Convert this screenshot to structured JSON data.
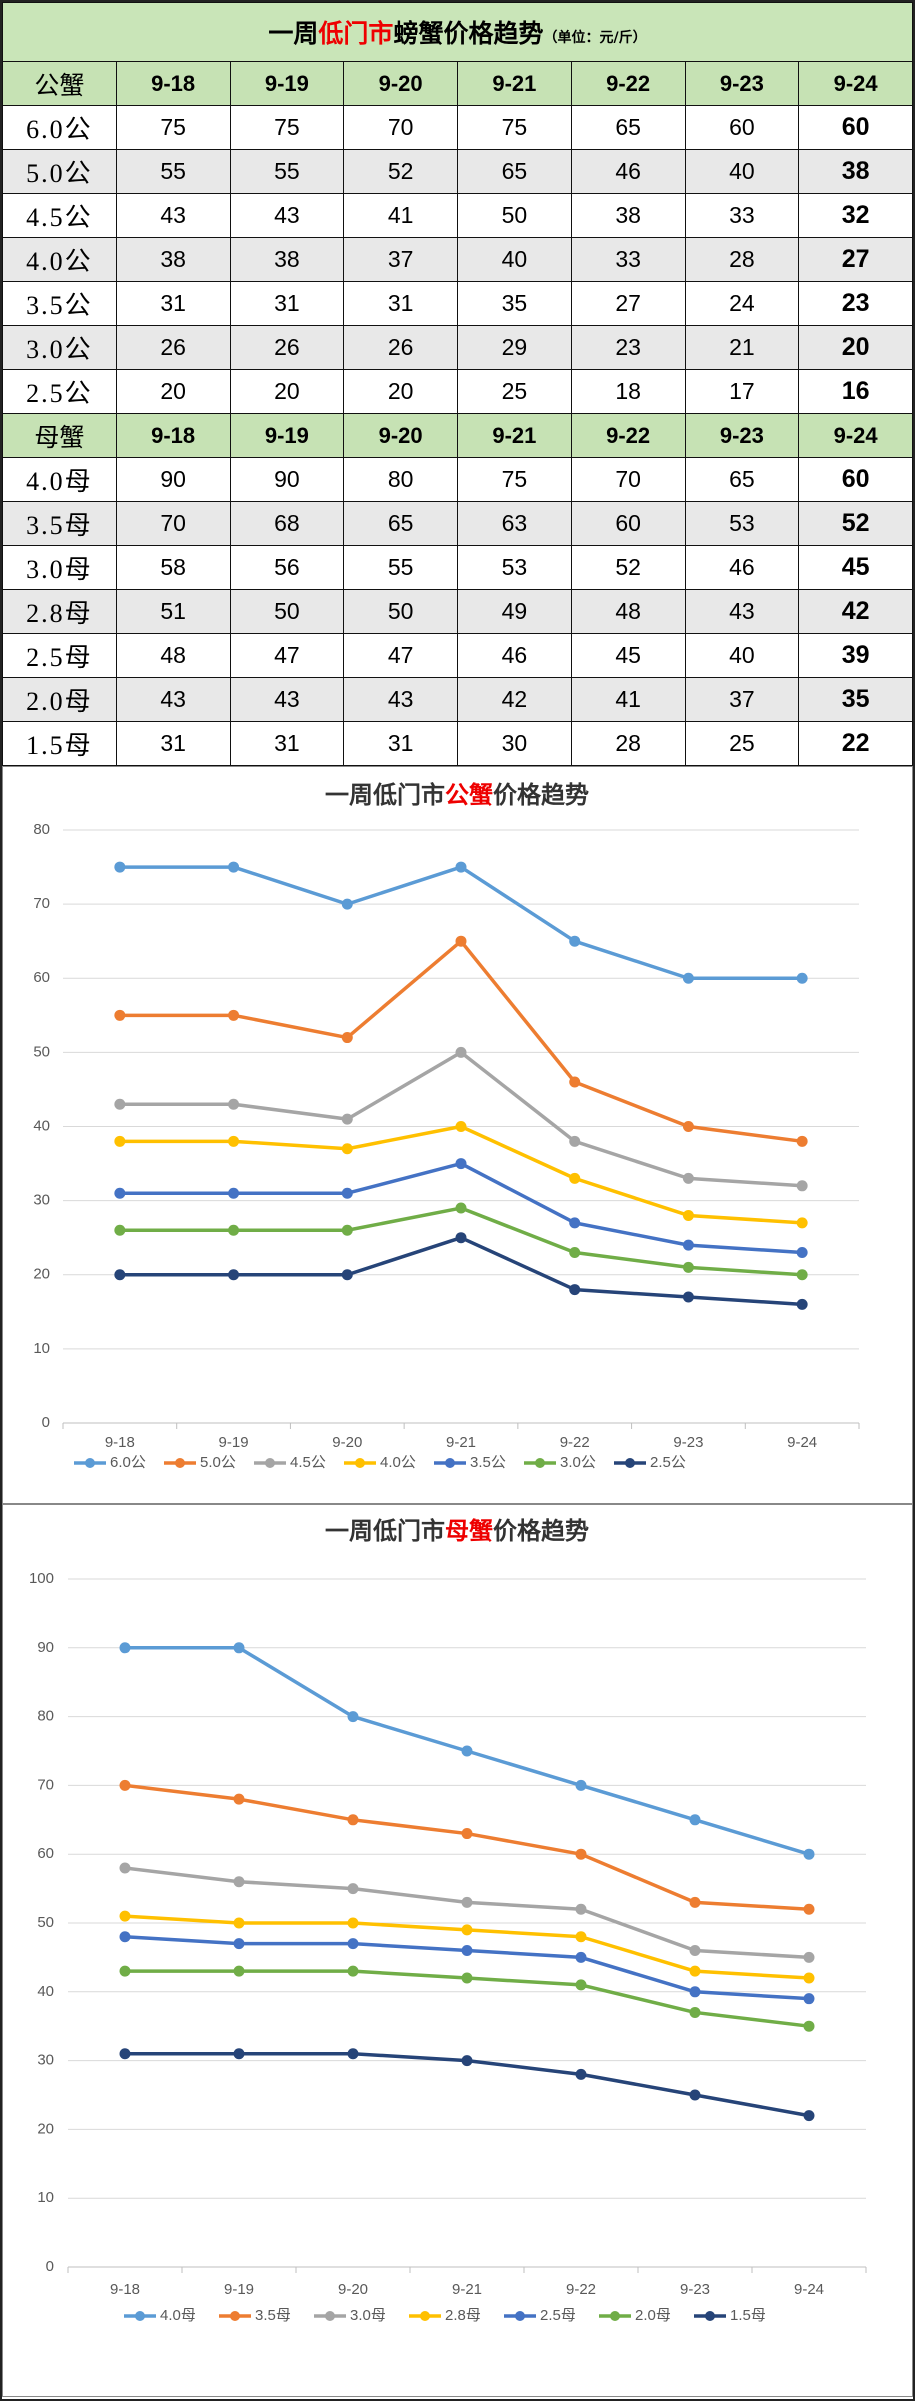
{
  "table": {
    "title_parts": [
      "一周",
      "低门市",
      "螃蟹价格趋势",
      "（单位：元/斤）"
    ],
    "sections": [
      {
        "header": [
          "公蟹",
          "9-18",
          "9-19",
          "9-20",
          "9-21",
          "9-22",
          "9-23",
          "9-24"
        ],
        "rows": [
          [
            "6.0公",
            75,
            75,
            70,
            75,
            65,
            60,
            60
          ],
          [
            "5.0公",
            55,
            55,
            52,
            65,
            46,
            40,
            38
          ],
          [
            "4.5公",
            43,
            43,
            41,
            50,
            38,
            33,
            32
          ],
          [
            "4.0公",
            38,
            38,
            37,
            40,
            33,
            28,
            27
          ],
          [
            "3.5公",
            31,
            31,
            31,
            35,
            27,
            24,
            23
          ],
          [
            "3.0公",
            26,
            26,
            26,
            29,
            23,
            21,
            20
          ],
          [
            "2.5公",
            20,
            20,
            20,
            25,
            18,
            17,
            16
          ]
        ]
      },
      {
        "header": [
          "母蟹",
          "9-18",
          "9-19",
          "9-20",
          "9-21",
          "9-22",
          "9-23",
          "9-24"
        ],
        "rows": [
          [
            "4.0母",
            90,
            90,
            80,
            75,
            70,
            65,
            60
          ],
          [
            "3.5母",
            70,
            68,
            65,
            63,
            60,
            53,
            52
          ],
          [
            "3.0母",
            58,
            56,
            55,
            53,
            52,
            46,
            45
          ],
          [
            "2.8母",
            51,
            50,
            50,
            49,
            48,
            43,
            42
          ],
          [
            "2.5母",
            48,
            47,
            47,
            46,
            45,
            40,
            39
          ],
          [
            "2.0母",
            43,
            43,
            43,
            42,
            41,
            37,
            35
          ],
          [
            "1.5母",
            31,
            31,
            31,
            30,
            28,
            25,
            22
          ]
        ]
      }
    ]
  },
  "chart_data": [
    {
      "type": "line",
      "title_parts": [
        "一周低门市",
        "公蟹",
        "价格趋势"
      ],
      "categories": [
        "9-18",
        "9-19",
        "9-20",
        "9-21",
        "9-22",
        "9-23",
        "9-24"
      ],
      "ylim": [
        0,
        80
      ],
      "yticks": [
        0,
        10,
        20,
        30,
        40,
        50,
        60,
        70,
        80
      ],
      "grid": true,
      "legend": "bottom",
      "series": [
        {
          "name": "6.0公",
          "color": "#5b9bd5",
          "values": [
            75,
            75,
            70,
            75,
            65,
            60,
            60
          ]
        },
        {
          "name": "5.0公",
          "color": "#ed7d31",
          "values": [
            55,
            55,
            52,
            65,
            46,
            40,
            38
          ]
        },
        {
          "name": "4.5公",
          "color": "#a5a5a5",
          "values": [
            43,
            43,
            41,
            50,
            38,
            33,
            32
          ]
        },
        {
          "name": "4.0公",
          "color": "#ffc000",
          "values": [
            38,
            38,
            37,
            40,
            33,
            28,
            27
          ]
        },
        {
          "name": "3.5公",
          "color": "#4472c4",
          "values": [
            31,
            31,
            31,
            35,
            27,
            24,
            23
          ]
        },
        {
          "name": "3.0公",
          "color": "#70ad47",
          "values": [
            26,
            26,
            26,
            29,
            23,
            21,
            20
          ]
        },
        {
          "name": "2.5公",
          "color": "#264478",
          "values": [
            20,
            20,
            20,
            25,
            18,
            17,
            16
          ]
        }
      ]
    },
    {
      "type": "line",
      "title_parts": [
        "一周低门市",
        "母蟹",
        "价格趋势"
      ],
      "categories": [
        "9-18",
        "9-19",
        "9-20",
        "9-21",
        "9-22",
        "9-23",
        "9-24"
      ],
      "ylim": [
        0,
        100
      ],
      "yticks": [
        0,
        10,
        20,
        30,
        40,
        50,
        60,
        70,
        80,
        90,
        100
      ],
      "grid": true,
      "legend": "bottom",
      "series": [
        {
          "name": "4.0母",
          "color": "#5b9bd5",
          "values": [
            90,
            90,
            80,
            75,
            70,
            65,
            60
          ]
        },
        {
          "name": "3.5母",
          "color": "#ed7d31",
          "values": [
            70,
            68,
            65,
            63,
            60,
            53,
            52
          ]
        },
        {
          "name": "3.0母",
          "color": "#a5a5a5",
          "values": [
            58,
            56,
            55,
            53,
            52,
            46,
            45
          ]
        },
        {
          "name": "2.8母",
          "color": "#ffc000",
          "values": [
            51,
            50,
            50,
            49,
            48,
            43,
            42
          ]
        },
        {
          "name": "2.5母",
          "color": "#4472c4",
          "values": [
            48,
            47,
            47,
            46,
            45,
            40,
            39
          ]
        },
        {
          "name": "2.0母",
          "color": "#70ad47",
          "values": [
            43,
            43,
            43,
            42,
            41,
            37,
            35
          ]
        },
        {
          "name": "1.5母",
          "color": "#264478",
          "values": [
            31,
            31,
            31,
            30,
            28,
            25,
            22
          ]
        }
      ]
    }
  ]
}
